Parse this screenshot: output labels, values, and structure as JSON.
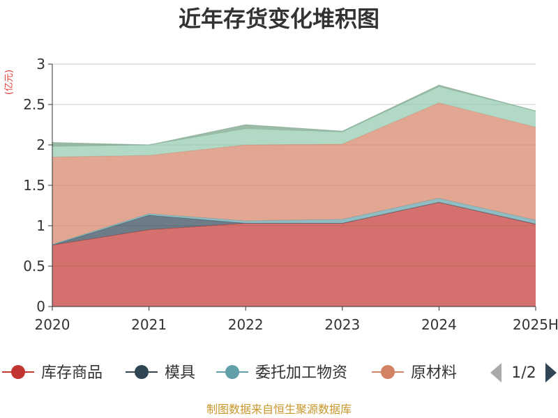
{
  "chart_data": {
    "type": "area",
    "stacked": true,
    "title": "近年存货变化堆积图",
    "unit_label": "(亿元)",
    "x": [
      "2020",
      "2021",
      "2022",
      "2023",
      "2024",
      "2025H"
    ],
    "ylim": [
      0,
      3
    ],
    "y_ticks": [
      "0",
      "0.5",
      "1",
      "1.5",
      "2",
      "2.5",
      "3"
    ],
    "y_tick_values": [
      0,
      0.5,
      1,
      1.5,
      2,
      2.5,
      3
    ],
    "grid": true,
    "series": [
      {
        "name": "库存商品",
        "values": [
          0.76,
          0.95,
          1.03,
          1.03,
          1.29,
          1.02
        ],
        "color": "#c23531"
      },
      {
        "name": "模具",
        "values": [
          0.0,
          0.18,
          0.0,
          0.0,
          0.0,
          0.0
        ],
        "color": "#2f4554"
      },
      {
        "name": "委托加工物资",
        "values": [
          0.01,
          0.02,
          0.03,
          0.05,
          0.05,
          0.05
        ],
        "color": "#61a0a8"
      },
      {
        "name": "原材料",
        "values": [
          1.08,
          0.72,
          0.94,
          0.93,
          1.18,
          1.15
        ],
        "color": "#d48265"
      },
      {
        "value_hidden_series": true,
        "values": [
          0.13,
          0.13,
          0.2,
          0.15,
          0.2,
          0.2
        ],
        "color": "#91c7ae"
      },
      {
        "value_hidden_series": true,
        "values": [
          0.05,
          0.0,
          0.05,
          0.01,
          0.02,
          0.0
        ],
        "color": "#749f83"
      }
    ],
    "legend_position": "bottom",
    "legend_page": "1/2",
    "footer": "制图数据来自恒生聚源数据库"
  }
}
